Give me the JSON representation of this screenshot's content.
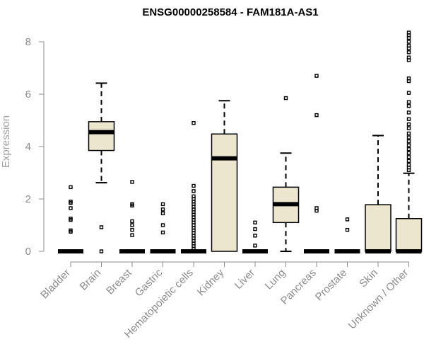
{
  "chart_data": {
    "type": "boxplot",
    "title": "ENSG00000258584 - FAM181A-AS1",
    "ylabel": "Expression",
    "xlabel": "",
    "ylim": [
      0,
      8.4
    ],
    "yticks": [
      0,
      2,
      4,
      6,
      8
    ],
    "box_color": "#ede6cf",
    "series": [
      {
        "category": "Bladder",
        "q1": 0,
        "median": 0,
        "q3": 0,
        "whisker_low": 0,
        "whisker_high": 0,
        "outliers": [
          0.75,
          0.8,
          1.2,
          1.25,
          1.65,
          1.85,
          1.9,
          2.45
        ]
      },
      {
        "category": "Brain",
        "q1": 3.85,
        "median": 4.55,
        "q3": 4.95,
        "whisker_low": 2.62,
        "whisker_high": 6.42,
        "outliers": [
          0,
          0.92
        ]
      },
      {
        "category": "Breast",
        "q1": 0,
        "median": 0,
        "q3": 0,
        "whisker_low": 0,
        "whisker_high": 0,
        "outliers": [
          0.62,
          0.82,
          1.0,
          1.15,
          1.75,
          1.8,
          2.65
        ]
      },
      {
        "category": "Gastric",
        "q1": 0,
        "median": 0,
        "q3": 0,
        "whisker_low": 0,
        "whisker_high": 0,
        "outliers": [
          0.72,
          1.0,
          1.45,
          1.6,
          1.8
        ]
      },
      {
        "category": "Hematopoietic cells",
        "q1": 0,
        "median": 0,
        "q3": 0,
        "whisker_low": 0,
        "whisker_high": 0,
        "outliers": [
          0.1,
          0.2,
          0.3,
          0.4,
          0.5,
          0.6,
          0.7,
          0.8,
          0.9,
          1.0,
          1.1,
          1.2,
          1.3,
          1.4,
          1.5,
          1.6,
          1.7,
          1.8,
          1.9,
          2.0,
          2.1,
          2.3,
          2.5,
          4.9
        ]
      },
      {
        "category": "Kidney",
        "q1": 0,
        "median": 3.55,
        "q3": 4.48,
        "whisker_low": 0,
        "whisker_high": 5.75,
        "outliers": []
      },
      {
        "category": "Liver",
        "q1": 0,
        "median": 0,
        "q3": 0,
        "whisker_low": 0,
        "whisker_high": 0,
        "outliers": [
          0.22,
          0.6,
          0.85,
          1.1
        ]
      },
      {
        "category": "Lung",
        "q1": 1.1,
        "median": 1.8,
        "q3": 2.45,
        "whisker_low": 0,
        "whisker_high": 3.75,
        "outliers": [
          5.85
        ]
      },
      {
        "category": "Pancreas",
        "q1": 0,
        "median": 0,
        "q3": 0,
        "whisker_low": 0,
        "whisker_high": 0,
        "outliers": [
          1.55,
          1.65,
          5.2,
          6.7
        ]
      },
      {
        "category": "Prostate",
        "q1": 0,
        "median": 0,
        "q3": 0,
        "whisker_low": 0,
        "whisker_high": 0,
        "outliers": [
          0.82,
          1.22
        ]
      },
      {
        "category": "Skin",
        "q1": 0,
        "median": 0,
        "q3": 1.78,
        "whisker_low": 0,
        "whisker_high": 4.42,
        "outliers": []
      },
      {
        "category": "Unknown / Other",
        "q1": 0,
        "median": 0,
        "q3": 1.25,
        "whisker_low": 0,
        "whisker_high": 2.98,
        "outliers": [
          3.1,
          3.2,
          3.3,
          3.45,
          3.6,
          3.75,
          3.9,
          4.05,
          4.2,
          4.35,
          4.5,
          4.7,
          4.85,
          5.05,
          5.3,
          5.55,
          5.7,
          6.05,
          6.5,
          6.6,
          7.3,
          7.4,
          7.6,
          7.75,
          7.85,
          8.0,
          8.15,
          8.25,
          8.35
        ]
      }
    ]
  }
}
